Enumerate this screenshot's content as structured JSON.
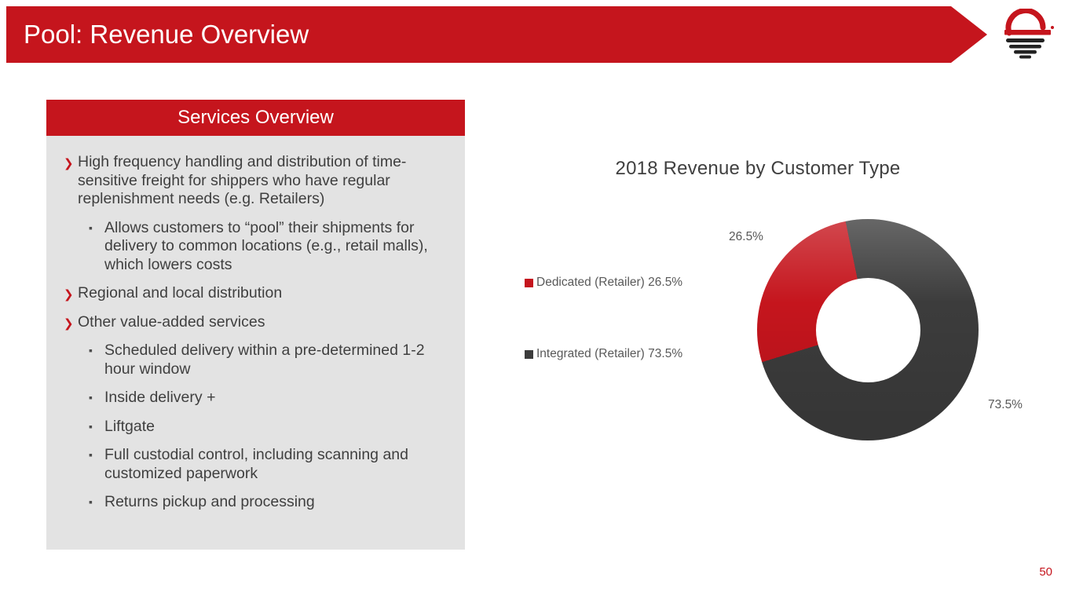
{
  "slide": {
    "title": "Pool: Revenue Overview",
    "page_number": "50",
    "accent_red": "#c5151d",
    "logo": "sun-over-horizon-logo"
  },
  "services": {
    "header": "Services Overview",
    "items": [
      {
        "level": 1,
        "text": "High frequency handling and distribution of time-sensitive freight for shippers who have regular replenishment needs (e.g. Retailers)"
      },
      {
        "level": 2,
        "text": "Allows customers to “pool” their shipments for delivery to common locations (e.g., retail malls), which lowers costs"
      },
      {
        "level": 1,
        "text": "Regional and local distribution"
      },
      {
        "level": 1,
        "text": "Other value-added services"
      },
      {
        "level": 2,
        "text": "Scheduled delivery within a pre-determined 1-2 hour window"
      },
      {
        "level": 2,
        "text": "Inside delivery +"
      },
      {
        "level": 2,
        "text": "Liftgate"
      },
      {
        "level": 2,
        "text": "Full custodial control, including scanning and customized paperwork"
      },
      {
        "level": 2,
        "text": "Returns pickup and processing"
      }
    ]
  },
  "chart_data": {
    "type": "pie",
    "subtype": "donut",
    "title": "2018 Revenue by Customer Type",
    "rotation_deg": 253,
    "slices": [
      {
        "label": "Dedicated (Retailer)",
        "value": 26.5,
        "display": "26.5%",
        "color": "#c5151d"
      },
      {
        "label": "Integrated (Retailer)",
        "value": 73.5,
        "display": "73.5%",
        "color": "#3c3c3c"
      }
    ],
    "legend": [
      {
        "label": "Dedicated (Retailer) 26.5%",
        "color": "#c5151d"
      },
      {
        "label": "Integrated (Retailer) 73.5%",
        "color": "#3c3c3c"
      }
    ],
    "legend_position": "left",
    "data_labels": [
      "26.5%",
      "73.5%"
    ]
  }
}
